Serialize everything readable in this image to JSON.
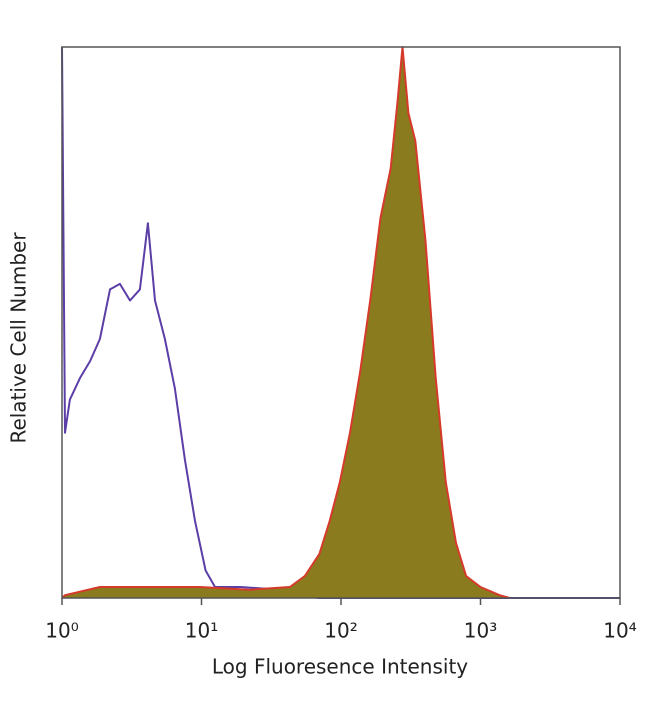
{
  "chart_data": {
    "type": "area",
    "x_label": "Log Fluoresence Intensity",
    "y_label": "Relative Cell Number",
    "log_x": true,
    "xlim": [
      1,
      10000
    ],
    "xticks": [
      {
        "value": 1,
        "label": "10⁰"
      },
      {
        "value": 10,
        "label": "10¹"
      },
      {
        "value": 100,
        "label": "10²"
      },
      {
        "value": 1000,
        "label": "10³"
      },
      {
        "value": 10000,
        "label": "10⁴"
      }
    ],
    "ylim": [
      0,
      100
    ],
    "series": [
      {
        "color": "#5b3ea6",
        "x": [
          1,
          1.05,
          1.14,
          1.35,
          1.59,
          1.87,
          2.21,
          2.6,
          3.07,
          3.62,
          4.13,
          4.64,
          5.47,
          6.45,
          7.61,
          8.98,
          10.7,
          12.5,
          18.9,
          36.6,
          51,
          69,
          10000
        ],
        "values": [
          100,
          30,
          36,
          40,
          43,
          47,
          56,
          57,
          54,
          56,
          68,
          54,
          47,
          38,
          25,
          14,
          5,
          2,
          2,
          1.5,
          0.5,
          0,
          0
        ]
      },
      {
        "color": "#d63a2a",
        "fill": "#8b7b1f",
        "x": [
          1,
          1.05,
          1.87,
          4.27,
          9.7,
          22,
          43,
          55,
          70,
          83,
          98,
          116,
          137,
          162,
          192,
          227,
          254,
          276,
          304,
          341,
          403,
          477,
          564,
          667,
          789,
          1000,
          1370,
          1620
        ],
        "values": [
          0,
          0.5,
          2,
          2,
          2,
          1.5,
          2,
          4,
          8,
          14,
          21,
          30,
          41,
          54,
          69,
          78,
          90,
          100,
          88,
          83,
          65,
          40,
          21,
          10,
          4,
          2,
          0.5,
          0
        ]
      }
    ]
  }
}
